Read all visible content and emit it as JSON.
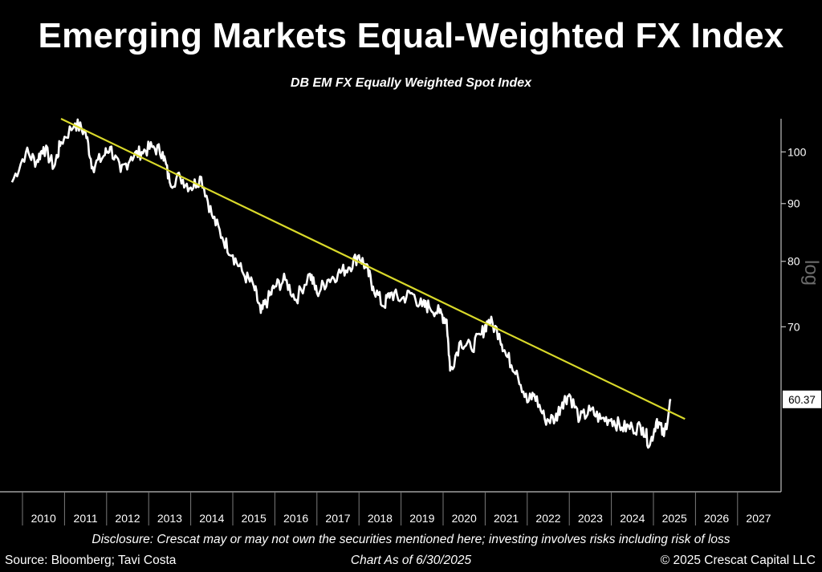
{
  "header": {
    "title": "Emerging Markets Equal-Weighted FX Index",
    "subtitle": "DB EM FX Equally Weighted Spot Index"
  },
  "footer": {
    "disclosure": "Disclosure: Crescat may or may not own the securities mentioned here; investing involves risks including risk of loss",
    "source": "Source: Bloomberg; Tavi Costa",
    "as_of": "Chart As of 6/30/2025",
    "copyright": "© 2025 Crescat Capital LLC"
  },
  "colors": {
    "background": "#000000",
    "series": "#ffffff",
    "trendline": "#d9d92a",
    "axis": "#bfbfbf"
  },
  "chart_data": {
    "type": "line",
    "title": "Emerging Markets Equal-Weighted FX Index",
    "subtitle": "DB EM FX Equally Weighted Spot Index",
    "y_scale": "log",
    "y_scale_label": "log",
    "y_ticks": [
      70,
      80,
      90,
      100
    ],
    "ylim": [
      50,
      107
    ],
    "x_tick_labels": [
      "2010",
      "2011",
      "2012",
      "2013",
      "2014",
      "2015",
      "2016",
      "2017",
      "2018",
      "2019",
      "2020",
      "2021",
      "2022",
      "2023",
      "2024",
      "2025",
      "2026",
      "2027"
    ],
    "xlim": [
      "2009-09",
      "2027-12"
    ],
    "grid": false,
    "last_value_label": "60.37",
    "series": [
      {
        "type": "line",
        "x": [
          "2009-10",
          "2010-02",
          "2010-05",
          "2010-07",
          "2010-10",
          "2010-12",
          "2011-04",
          "2011-07",
          "2011-09",
          "2011-12",
          "2012-02",
          "2012-05",
          "2012-08",
          "2012-11",
          "2013-02",
          "2013-05",
          "2013-07",
          "2013-10",
          "2014-01",
          "2014-04",
          "2014-07",
          "2014-10",
          "2015-01",
          "2015-04",
          "2015-07",
          "2015-09",
          "2015-11",
          "2016-01",
          "2016-04",
          "2016-07",
          "2016-11",
          "2017-01",
          "2017-04",
          "2017-07",
          "2017-10",
          "2018-01",
          "2018-03",
          "2018-05",
          "2018-08",
          "2018-10",
          "2019-01",
          "2019-04",
          "2019-07",
          "2019-09",
          "2019-12",
          "2020-02",
          "2020-03",
          "2020-06",
          "2020-09",
          "2020-12",
          "2021-02",
          "2021-05",
          "2021-07",
          "2021-10",
          "2022-01",
          "2022-03",
          "2022-06",
          "2022-09",
          "2022-11",
          "2023-01",
          "2023-04",
          "2023-07",
          "2023-10",
          "2024-01",
          "2024-04",
          "2024-07",
          "2024-10",
          "2024-12",
          "2025-02",
          "2025-04",
          "2025-06"
        ],
        "y": [
          94,
          100,
          98,
          101,
          97,
          102,
          106,
          104,
          97,
          99,
          101,
          96,
          99,
          100,
          101,
          100,
          94,
          95,
          93,
          95,
          88,
          84,
          81,
          78,
          76,
          72,
          74,
          76,
          77,
          74,
          78,
          75,
          77,
          78,
          79,
          81,
          79,
          76,
          73,
          75,
          74,
          75,
          73,
          73,
          72,
          71,
          64,
          68,
          67,
          69,
          71,
          69,
          66,
          64,
          60,
          61,
          58,
          58,
          60,
          61,
          58,
          59,
          58,
          58,
          57,
          57,
          57,
          55,
          58,
          56,
          60.37
        ]
      },
      {
        "type": "trendline",
        "x": [
          "2010-12",
          "2025-10"
        ],
        "y": [
          107,
          58
        ]
      }
    ]
  }
}
